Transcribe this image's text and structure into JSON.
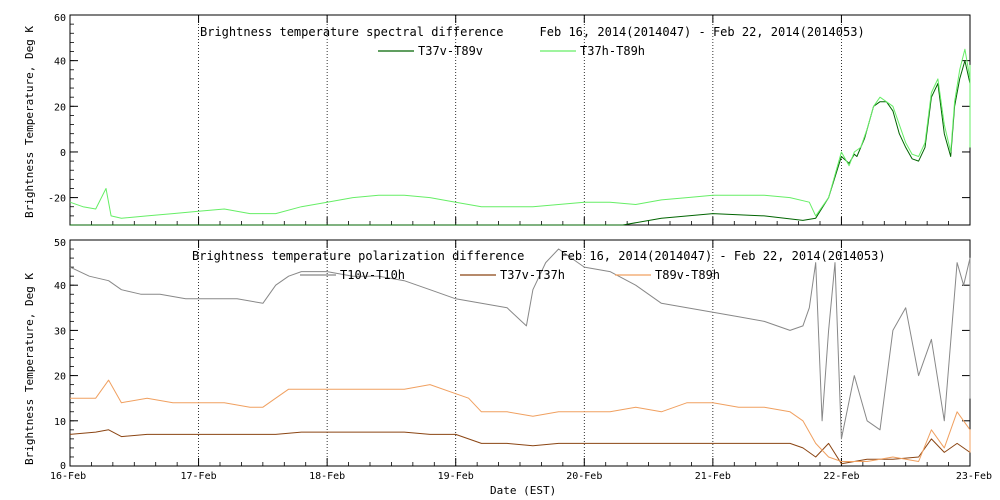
{
  "chart_data": [
    {
      "type": "line",
      "title": "Brightness temperature spectral difference     Feb 16, 2014(2014047) - Feb 22, 2014(2014053)",
      "ylabel": "Brightness Temperature, Deg K",
      "xlabel": "",
      "xlim": [
        0,
        7
      ],
      "ylim": [
        -32,
        60
      ],
      "yticks": [
        -20,
        0,
        20,
        40,
        60
      ],
      "x_ticks_major": [
        0,
        1,
        2,
        3,
        4,
        5,
        6,
        7
      ],
      "grid": "dotted vertical at each day",
      "legend": "top-center",
      "series": [
        {
          "name": "T37v-T89v",
          "color": "#006400",
          "points": [
            [
              0.0,
              -32
            ],
            [
              0.4,
              -32
            ],
            [
              0.8,
              -32
            ],
            [
              1.2,
              -32
            ],
            [
              1.6,
              -32
            ],
            [
              2.0,
              -32
            ],
            [
              2.4,
              -32
            ],
            [
              2.8,
              -32
            ],
            [
              3.2,
              -32
            ],
            [
              3.6,
              -32
            ],
            [
              4.0,
              -32
            ],
            [
              4.3,
              -32
            ],
            [
              4.6,
              -29
            ],
            [
              5.0,
              -27
            ],
            [
              5.4,
              -28
            ],
            [
              5.7,
              -30
            ],
            [
              5.8,
              -29
            ],
            [
              5.9,
              -20
            ],
            [
              6.0,
              -2
            ],
            [
              6.06,
              -5
            ],
            [
              6.1,
              -1
            ],
            [
              6.12,
              -2
            ],
            [
              6.18,
              6
            ],
            [
              6.25,
              20
            ],
            [
              6.3,
              22
            ],
            [
              6.35,
              22
            ],
            [
              6.4,
              18
            ],
            [
              6.45,
              8
            ],
            [
              6.5,
              2
            ],
            [
              6.55,
              -3
            ],
            [
              6.6,
              -4
            ],
            [
              6.65,
              2
            ],
            [
              6.7,
              24
            ],
            [
              6.75,
              30
            ],
            [
              6.8,
              8
            ],
            [
              6.85,
              -2
            ],
            [
              6.88,
              20
            ],
            [
              6.92,
              32
            ],
            [
              6.96,
              40
            ],
            [
              7.0,
              30
            ],
            [
              7.05,
              34
            ],
            [
              7.1,
              28
            ],
            [
              7.15,
              10
            ],
            [
              7.2,
              2
            ],
            [
              7.25,
              4
            ]
          ]
        },
        {
          "name": "T37h-T89h",
          "color": "#66ee66",
          "points": [
            [
              0.0,
              -22
            ],
            [
              0.1,
              -24
            ],
            [
              0.2,
              -25
            ],
            [
              0.28,
              -16
            ],
            [
              0.32,
              -28
            ],
            [
              0.4,
              -29
            ],
            [
              0.6,
              -28
            ],
            [
              0.8,
              -27
            ],
            [
              1.0,
              -26
            ],
            [
              1.2,
              -25
            ],
            [
              1.4,
              -27
            ],
            [
              1.6,
              -27
            ],
            [
              1.8,
              -24
            ],
            [
              2.0,
              -22
            ],
            [
              2.2,
              -20
            ],
            [
              2.4,
              -19
            ],
            [
              2.6,
              -19
            ],
            [
              2.8,
              -20
            ],
            [
              3.0,
              -22
            ],
            [
              3.2,
              -24
            ],
            [
              3.4,
              -24
            ],
            [
              3.6,
              -24
            ],
            [
              3.8,
              -23
            ],
            [
              4.0,
              -22
            ],
            [
              4.2,
              -22
            ],
            [
              4.4,
              -23
            ],
            [
              4.6,
              -21
            ],
            [
              4.8,
              -20
            ],
            [
              5.0,
              -19
            ],
            [
              5.2,
              -19
            ],
            [
              5.4,
              -19
            ],
            [
              5.6,
              -20
            ],
            [
              5.75,
              -22
            ],
            [
              5.8,
              -28
            ],
            [
              5.9,
              -20
            ],
            [
              6.0,
              0
            ],
            [
              6.06,
              -6
            ],
            [
              6.1,
              0
            ],
            [
              6.15,
              2
            ],
            [
              6.2,
              10
            ],
            [
              6.25,
              20
            ],
            [
              6.3,
              24
            ],
            [
              6.35,
              22
            ],
            [
              6.4,
              20
            ],
            [
              6.45,
              12
            ],
            [
              6.5,
              4
            ],
            [
              6.55,
              -1
            ],
            [
              6.6,
              -2
            ],
            [
              6.65,
              4
            ],
            [
              6.7,
              26
            ],
            [
              6.75,
              32
            ],
            [
              6.8,
              12
            ],
            [
              6.85,
              0
            ],
            [
              6.88,
              22
            ],
            [
              6.92,
              36
            ],
            [
              6.96,
              45
            ],
            [
              7.0,
              32
            ],
            [
              7.05,
              38
            ],
            [
              7.1,
              30
            ],
            [
              7.15,
              14
            ],
            [
              7.2,
              4
            ],
            [
              7.25,
              2
            ]
          ]
        }
      ]
    },
    {
      "type": "line",
      "title": "Brightness temperature polarization difference     Feb 16, 2014(2014047) - Feb 22, 2014(2014053)",
      "ylabel": "Brightness Temperature, Deg K",
      "xlabel": "Date (EST)",
      "xlim": [
        0,
        7
      ],
      "ylim": [
        0,
        50
      ],
      "yticks": [
        0,
        10,
        20,
        30,
        40,
        50
      ],
      "x_tick_labels": [
        "16-Feb",
        "17-Feb",
        "18-Feb",
        "19-Feb",
        "20-Feb",
        "21-Feb",
        "22-Feb",
        "23-Feb"
      ],
      "grid": "dotted vertical at each day",
      "legend": "top-center",
      "series": [
        {
          "name": "T10v-T10h",
          "color": "#888888",
          "points": [
            [
              0.0,
              44
            ],
            [
              0.15,
              42
            ],
            [
              0.3,
              41
            ],
            [
              0.4,
              39
            ],
            [
              0.55,
              38
            ],
            [
              0.7,
              38
            ],
            [
              0.9,
              37
            ],
            [
              1.1,
              37
            ],
            [
              1.3,
              37
            ],
            [
              1.5,
              36
            ],
            [
              1.6,
              40
            ],
            [
              1.7,
              42
            ],
            [
              1.8,
              43
            ],
            [
              2.0,
              43
            ],
            [
              2.2,
              42
            ],
            [
              2.4,
              42
            ],
            [
              2.6,
              41
            ],
            [
              2.8,
              39
            ],
            [
              3.0,
              37
            ],
            [
              3.2,
              36
            ],
            [
              3.4,
              35
            ],
            [
              3.55,
              31
            ],
            [
              3.6,
              39
            ],
            [
              3.7,
              45
            ],
            [
              3.8,
              48
            ],
            [
              3.9,
              46
            ],
            [
              4.0,
              44
            ],
            [
              4.2,
              43
            ],
            [
              4.4,
              40
            ],
            [
              4.6,
              36
            ],
            [
              4.8,
              35
            ],
            [
              5.0,
              34
            ],
            [
              5.2,
              33
            ],
            [
              5.4,
              32
            ],
            [
              5.6,
              30
            ],
            [
              5.7,
              31
            ],
            [
              5.75,
              35
            ],
            [
              5.8,
              45
            ],
            [
              5.85,
              10
            ],
            [
              5.9,
              30
            ],
            [
              5.95,
              45
            ],
            [
              6.0,
              6
            ],
            [
              6.1,
              20
            ],
            [
              6.2,
              10
            ],
            [
              6.3,
              8
            ],
            [
              6.4,
              30
            ],
            [
              6.5,
              35
            ],
            [
              6.6,
              20
            ],
            [
              6.7,
              28
            ],
            [
              6.8,
              10
            ],
            [
              6.9,
              45
            ],
            [
              6.95,
              40
            ],
            [
              7.0,
              46
            ],
            [
              7.05,
              40
            ],
            [
              7.1,
              30
            ],
            [
              7.15,
              15
            ],
            [
              7.2,
              25
            ],
            [
              7.25,
              30
            ]
          ]
        },
        {
          "name": "T37v-T37h",
          "color": "#8b4513",
          "points": [
            [
              0.0,
              7
            ],
            [
              0.2,
              7.5
            ],
            [
              0.3,
              8
            ],
            [
              0.4,
              6.5
            ],
            [
              0.6,
              7
            ],
            [
              0.8,
              7
            ],
            [
              1.0,
              7
            ],
            [
              1.2,
              7
            ],
            [
              1.4,
              7
            ],
            [
              1.6,
              7
            ],
            [
              1.8,
              7.5
            ],
            [
              2.0,
              7.5
            ],
            [
              2.2,
              7.5
            ],
            [
              2.4,
              7.5
            ],
            [
              2.6,
              7.5
            ],
            [
              2.8,
              7
            ],
            [
              3.0,
              7
            ],
            [
              3.2,
              5
            ],
            [
              3.4,
              5
            ],
            [
              3.6,
              4.5
            ],
            [
              3.8,
              5
            ],
            [
              4.0,
              5
            ],
            [
              4.2,
              5
            ],
            [
              4.4,
              5
            ],
            [
              4.6,
              5
            ],
            [
              4.8,
              5
            ],
            [
              5.0,
              5
            ],
            [
              5.2,
              5
            ],
            [
              5.4,
              5
            ],
            [
              5.6,
              5
            ],
            [
              5.7,
              4
            ],
            [
              5.8,
              2
            ],
            [
              5.9,
              5
            ],
            [
              6.0,
              0.5
            ],
            [
              6.1,
              1
            ],
            [
              6.2,
              1.5
            ],
            [
              6.4,
              1.5
            ],
            [
              6.6,
              2
            ],
            [
              6.7,
              6
            ],
            [
              6.8,
              3
            ],
            [
              6.9,
              5
            ],
            [
              7.0,
              3
            ],
            [
              7.1,
              3
            ],
            [
              7.2,
              4
            ],
            [
              7.25,
              4
            ]
          ]
        },
        {
          "name": "T89v-T89h",
          "color": "#f0a060",
          "points": [
            [
              0.0,
              15
            ],
            [
              0.2,
              15
            ],
            [
              0.3,
              19
            ],
            [
              0.4,
              14
            ],
            [
              0.6,
              15
            ],
            [
              0.8,
              14
            ],
            [
              1.0,
              14
            ],
            [
              1.2,
              14
            ],
            [
              1.4,
              13
            ],
            [
              1.5,
              13
            ],
            [
              1.6,
              15
            ],
            [
              1.7,
              17
            ],
            [
              1.8,
              17
            ],
            [
              2.0,
              17
            ],
            [
              2.2,
              17
            ],
            [
              2.4,
              17
            ],
            [
              2.6,
              17
            ],
            [
              2.8,
              18
            ],
            [
              3.0,
              16
            ],
            [
              3.1,
              15
            ],
            [
              3.2,
              12
            ],
            [
              3.4,
              12
            ],
            [
              3.6,
              11
            ],
            [
              3.8,
              12
            ],
            [
              4.0,
              12
            ],
            [
              4.2,
              12
            ],
            [
              4.4,
              13
            ],
            [
              4.6,
              12
            ],
            [
              4.8,
              14
            ],
            [
              5.0,
              14
            ],
            [
              5.2,
              13
            ],
            [
              5.4,
              13
            ],
            [
              5.6,
              12
            ],
            [
              5.7,
              10
            ],
            [
              5.8,
              5
            ],
            [
              5.9,
              2
            ],
            [
              6.0,
              1
            ],
            [
              6.2,
              1
            ],
            [
              6.4,
              2
            ],
            [
              6.6,
              1
            ],
            [
              6.7,
              8
            ],
            [
              6.8,
              4
            ],
            [
              6.9,
              12
            ],
            [
              7.0,
              8
            ],
            [
              7.1,
              5
            ],
            [
              7.2,
              3
            ],
            [
              7.25,
              3
            ]
          ]
        }
      ]
    }
  ]
}
